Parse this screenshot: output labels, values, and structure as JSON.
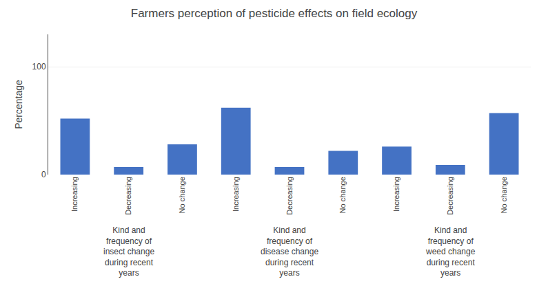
{
  "chart_data": {
    "type": "bar",
    "title": "Farmers perception of pesticide effects on field ecology",
    "ylabel": "Percentage",
    "categories": [
      "Increasing",
      "Decreasing",
      "No change",
      "Increasing",
      "Decreasing",
      "No change",
      "Increasing",
      "Decreasing",
      "No change"
    ],
    "values": [
      52,
      7,
      28,
      62,
      7,
      22,
      26,
      9,
      57
    ],
    "color": "#4472C4",
    "ylim": [
      0,
      130
    ],
    "yticks": [
      0,
      100
    ],
    "grid": true,
    "annotations": [
      "Kind and\nfrequency of\ninsect change\nduring recent\nyears",
      "Kind and\nfrequency of\ndisease change\nduring recent\nyears",
      "Kind and\nfrequency of\nweed change\nduring recent\nyears"
    ]
  }
}
